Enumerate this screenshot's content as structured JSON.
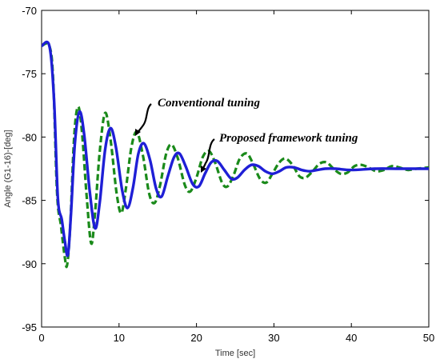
{
  "chart_data": {
    "type": "line",
    "title": "",
    "xlabel": "Time [sec]",
    "ylabel": "Angle (G1-16)-[deg]",
    "xlim": [
      0,
      50
    ],
    "ylim": [
      -95,
      -70
    ],
    "xticks": [
      0,
      10,
      20,
      30,
      40,
      50
    ],
    "yticks": [
      -70,
      -75,
      -80,
      -85,
      -90,
      -95
    ],
    "grid": false,
    "legend": "none",
    "annotations": [
      {
        "text": "Conventional tuning",
        "target_series": 0
      },
      {
        "text": "Proposed framework tuning",
        "target_series": 1
      }
    ],
    "series": [
      {
        "style": "dashed",
        "color": "#1a8a1a",
        "points": [
          [
            0,
            -72.8
          ],
          [
            1,
            -72.8
          ],
          [
            1.5,
            -75.5
          ],
          [
            2,
            -84.5
          ],
          [
            2.5,
            -87
          ],
          [
            3,
            -89.5
          ],
          [
            3.3,
            -90.1
          ],
          [
            3.7,
            -87
          ],
          [
            4.2,
            -80
          ],
          [
            4.7,
            -77.6
          ],
          [
            5.2,
            -79.5
          ],
          [
            5.8,
            -84.5
          ],
          [
            6.4,
            -88.4
          ],
          [
            6.9,
            -86
          ],
          [
            7.5,
            -81.2
          ],
          [
            8.2,
            -78.1
          ],
          [
            8.9,
            -80.2
          ],
          [
            9.7,
            -84.5
          ],
          [
            10.3,
            -86
          ],
          [
            10.9,
            -84
          ],
          [
            11.6,
            -80.8
          ],
          [
            12.3,
            -79.6
          ],
          [
            13.1,
            -81.5
          ],
          [
            13.9,
            -84.5
          ],
          [
            14.6,
            -85.2
          ],
          [
            15.3,
            -83.8
          ],
          [
            16.1,
            -81.3
          ],
          [
            16.8,
            -80.6
          ],
          [
            17.6,
            -81.7
          ],
          [
            18.5,
            -83.8
          ],
          [
            19.2,
            -84.3
          ],
          [
            20,
            -83.2
          ],
          [
            20.8,
            -81.6
          ],
          [
            21.6,
            -81.1
          ],
          [
            22.4,
            -82
          ],
          [
            23.3,
            -83.6
          ],
          [
            24,
            -83.9
          ],
          [
            24.8,
            -83
          ],
          [
            25.6,
            -81.7
          ],
          [
            26.5,
            -81.3
          ],
          [
            27.3,
            -82.1
          ],
          [
            28.2,
            -83.3
          ],
          [
            29,
            -83.6
          ],
          [
            29.8,
            -82.9
          ],
          [
            30.7,
            -82
          ],
          [
            31.5,
            -81.7
          ],
          [
            32.4,
            -82.2
          ],
          [
            33.3,
            -83.1
          ],
          [
            34.1,
            -83.2
          ],
          [
            35,
            -82.7
          ],
          [
            35.9,
            -82.1
          ],
          [
            36.8,
            -82
          ],
          [
            37.7,
            -82.5
          ],
          [
            38.6,
            -82.9
          ],
          [
            39.5,
            -82.8
          ],
          [
            40.4,
            -82.3
          ],
          [
            41.3,
            -82.2
          ],
          [
            42.2,
            -82.4
          ],
          [
            43.2,
            -82.7
          ],
          [
            44.2,
            -82.6
          ],
          [
            45.2,
            -82.3
          ],
          [
            46.2,
            -82.4
          ],
          [
            47.3,
            -82.6
          ],
          [
            48.4,
            -82.5
          ],
          [
            50,
            -82.4
          ]
        ]
      },
      {
        "style": "solid",
        "color": "#1f1fd6",
        "points": [
          [
            0,
            -72.8
          ],
          [
            1,
            -72.8
          ],
          [
            1.6,
            -77
          ],
          [
            2.1,
            -84.8
          ],
          [
            2.6,
            -86.5
          ],
          [
            3,
            -88.2
          ],
          [
            3.4,
            -89.3
          ],
          [
            3.8,
            -86
          ],
          [
            4.3,
            -80.5
          ],
          [
            4.9,
            -78
          ],
          [
            5.5,
            -79.8
          ],
          [
            6.2,
            -84.2
          ],
          [
            6.9,
            -87.2
          ],
          [
            7.5,
            -85.2
          ],
          [
            8.2,
            -81
          ],
          [
            8.9,
            -79.3
          ],
          [
            9.6,
            -80.8
          ],
          [
            10.4,
            -84.2
          ],
          [
            11.1,
            -85.6
          ],
          [
            11.8,
            -84
          ],
          [
            12.5,
            -81.3
          ],
          [
            13.2,
            -80.5
          ],
          [
            14,
            -81.8
          ],
          [
            14.8,
            -84.1
          ],
          [
            15.5,
            -84.7
          ],
          [
            16.3,
            -83.1
          ],
          [
            17.1,
            -81.6
          ],
          [
            17.8,
            -81.3
          ],
          [
            18.6,
            -82.3
          ],
          [
            19.5,
            -83.7
          ],
          [
            20.3,
            -83.9
          ],
          [
            21.1,
            -82.9
          ],
          [
            21.9,
            -82
          ],
          [
            22.7,
            -81.9
          ],
          [
            23.6,
            -82.6
          ],
          [
            24.5,
            -83.3
          ],
          [
            25.3,
            -83.2
          ],
          [
            26.2,
            -82.6
          ],
          [
            27.1,
            -82.2
          ],
          [
            28,
            -82.3
          ],
          [
            28.9,
            -82.7
          ],
          [
            29.8,
            -82.9
          ],
          [
            30.7,
            -82.7
          ],
          [
            31.6,
            -82.4
          ],
          [
            32.6,
            -82.4
          ],
          [
            33.6,
            -82.6
          ],
          [
            34.6,
            -82.7
          ],
          [
            35.6,
            -82.6
          ],
          [
            36.6,
            -82.5
          ],
          [
            38,
            -82.5
          ],
          [
            40,
            -82.6
          ],
          [
            43,
            -82.5
          ],
          [
            46,
            -82.5
          ],
          [
            50,
            -82.5
          ]
        ]
      }
    ]
  }
}
